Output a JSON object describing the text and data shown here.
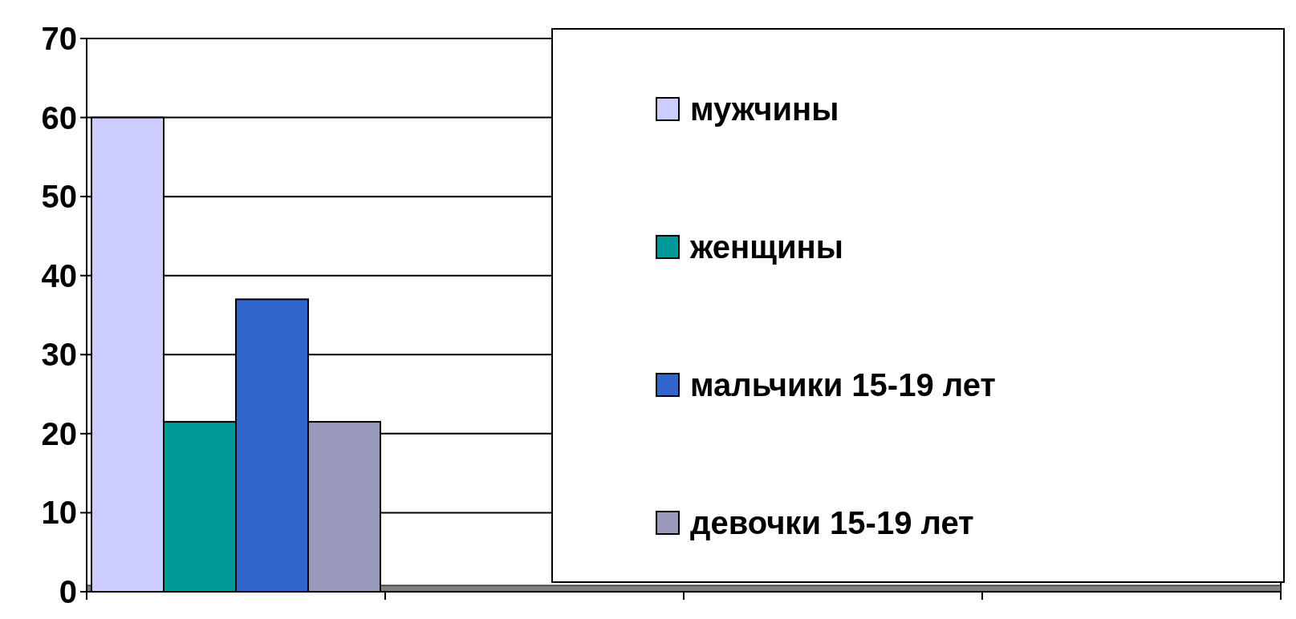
{
  "chart_data": {
    "type": "bar",
    "categories": [
      null,
      null,
      null,
      null
    ],
    "series": [
      {
        "name": "мужчины",
        "color": "#ccccff",
        "values": [
          60,
          null,
          null,
          null
        ]
      },
      {
        "name": "женщины",
        "color": "#009999",
        "values": [
          21.5,
          null,
          null,
          null
        ]
      },
      {
        "name": "мальчики 15-19 лет",
        "color": "#3366cc",
        "values": [
          37,
          null,
          null,
          null
        ]
      },
      {
        "name": "девочки 15-19 лет",
        "color": "#9999bb",
        "values": [
          21.5,
          null,
          null,
          null
        ]
      }
    ],
    "ylim": [
      0,
      70
    ],
    "yticks": [
      0,
      10,
      20,
      30,
      40,
      50,
      60,
      70
    ],
    "grid": "y",
    "legend": "right"
  }
}
